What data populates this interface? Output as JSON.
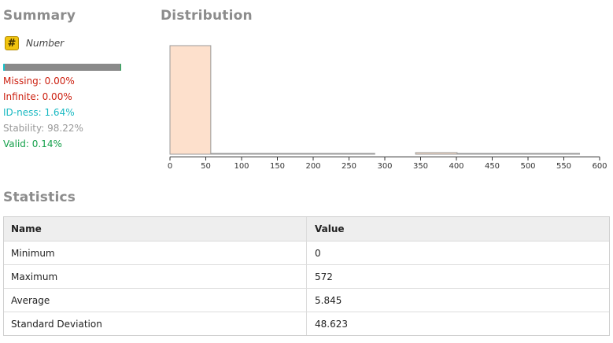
{
  "summary": {
    "title": "Summary",
    "type_icon": "#",
    "type_label": "Number",
    "quality_bar": {
      "id_fraction": 0.0164,
      "valid_fraction": 0.0014,
      "colors": {
        "base": "#8a8a8a",
        "id": "#16c4cc",
        "valid": "#1fb055"
      }
    },
    "metrics": {
      "missing": {
        "label": "Missing:",
        "value": "0.00%"
      },
      "infinite": {
        "label": "Infinite:",
        "value": "0.00%"
      },
      "idness": {
        "label": "ID-ness:",
        "value": "1.64%"
      },
      "stability": {
        "label": "Stability:",
        "value": "98.22%"
      },
      "valid": {
        "label": "Valid:",
        "value": "0.14%"
      }
    }
  },
  "distribution": {
    "title": "Distribution",
    "chart_data": {
      "type": "bar",
      "xlim": [
        0,
        600
      ],
      "x_ticks": [
        "0",
        "50",
        "100",
        "150",
        "200",
        "250",
        "300",
        "350",
        "400",
        "450",
        "500",
        "550",
        "600"
      ],
      "bins": [
        {
          "x0": 0,
          "x1": 57,
          "value": 1.0
        },
        {
          "x0": 57,
          "x1": 286,
          "value": 0.004
        },
        {
          "x0": 343,
          "x1": 401,
          "value": 0.015
        },
        {
          "x0": 401,
          "x1": 572,
          "value": 0.004
        }
      ],
      "colors": {
        "fill": "#fde0cc",
        "stroke": "#9a9a9a"
      }
    }
  },
  "statistics": {
    "title": "Statistics",
    "headers": {
      "name": "Name",
      "value": "Value"
    },
    "rows": [
      {
        "name": "Minimum",
        "value": "0"
      },
      {
        "name": "Maximum",
        "value": "572"
      },
      {
        "name": "Average",
        "value": "5.845"
      },
      {
        "name": "Standard Deviation",
        "value": "48.623"
      }
    ]
  }
}
